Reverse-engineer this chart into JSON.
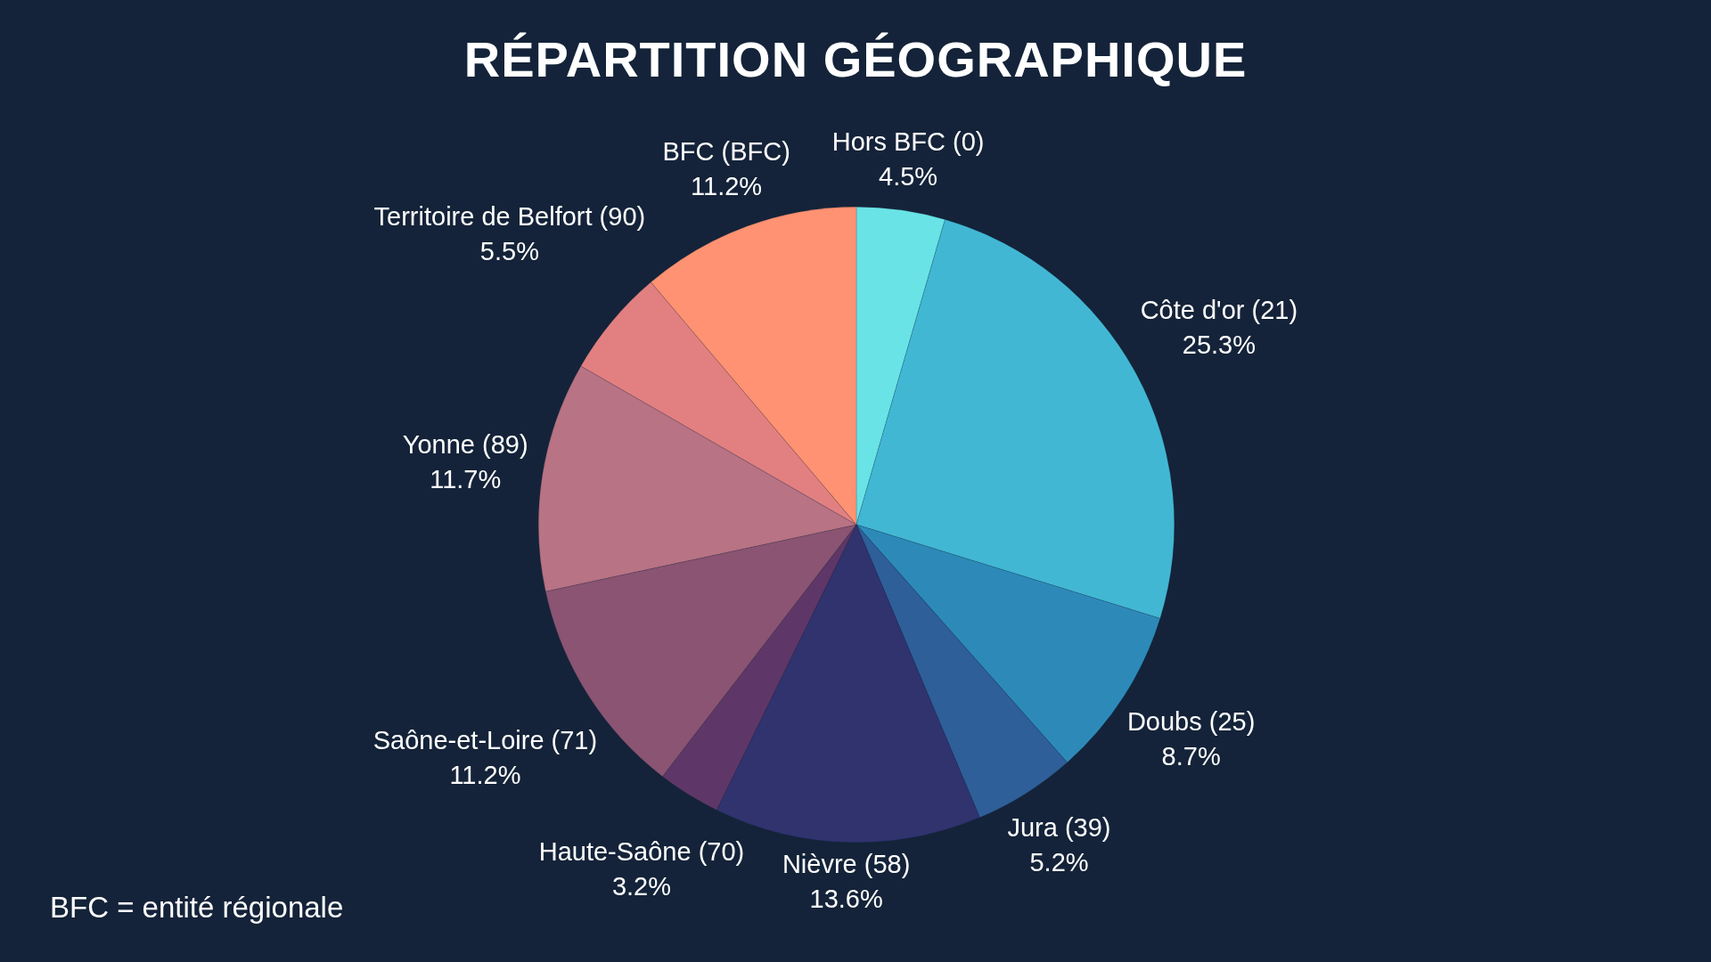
{
  "chart_data": {
    "type": "pie",
    "title": "RÉPARTITION GÉOGRAPHIQUE",
    "categories": [
      "Hors BFC (0)",
      "Côte d'or (21)",
      "Doubs (25)",
      "Jura (39)",
      "Nièvre (58)",
      "Haute-Saône (70)",
      "Saône-et-Loire (71)",
      "Yonne (89)",
      "Territoire de Belfort (90)",
      "BFC (BFC)"
    ],
    "values": [
      4.5,
      25.3,
      8.7,
      5.2,
      13.6,
      3.2,
      11.2,
      11.7,
      5.5,
      11.2
    ],
    "colors": [
      "#69e3e6",
      "#42b7d4",
      "#2d8ab8",
      "#2e5f99",
      "#30336e",
      "#5e3768",
      "#8a5472",
      "#b87384",
      "#e28081",
      "#fe9272"
    ],
    "value_labels": [
      "4.5%",
      "25.3%",
      "8.7%",
      "5.2%",
      "13.6%",
      "3.2%",
      "11.2%",
      "11.7%",
      "5.5%",
      "11.2%"
    ],
    "annotations": [
      "BFC = entité régionale"
    ]
  }
}
